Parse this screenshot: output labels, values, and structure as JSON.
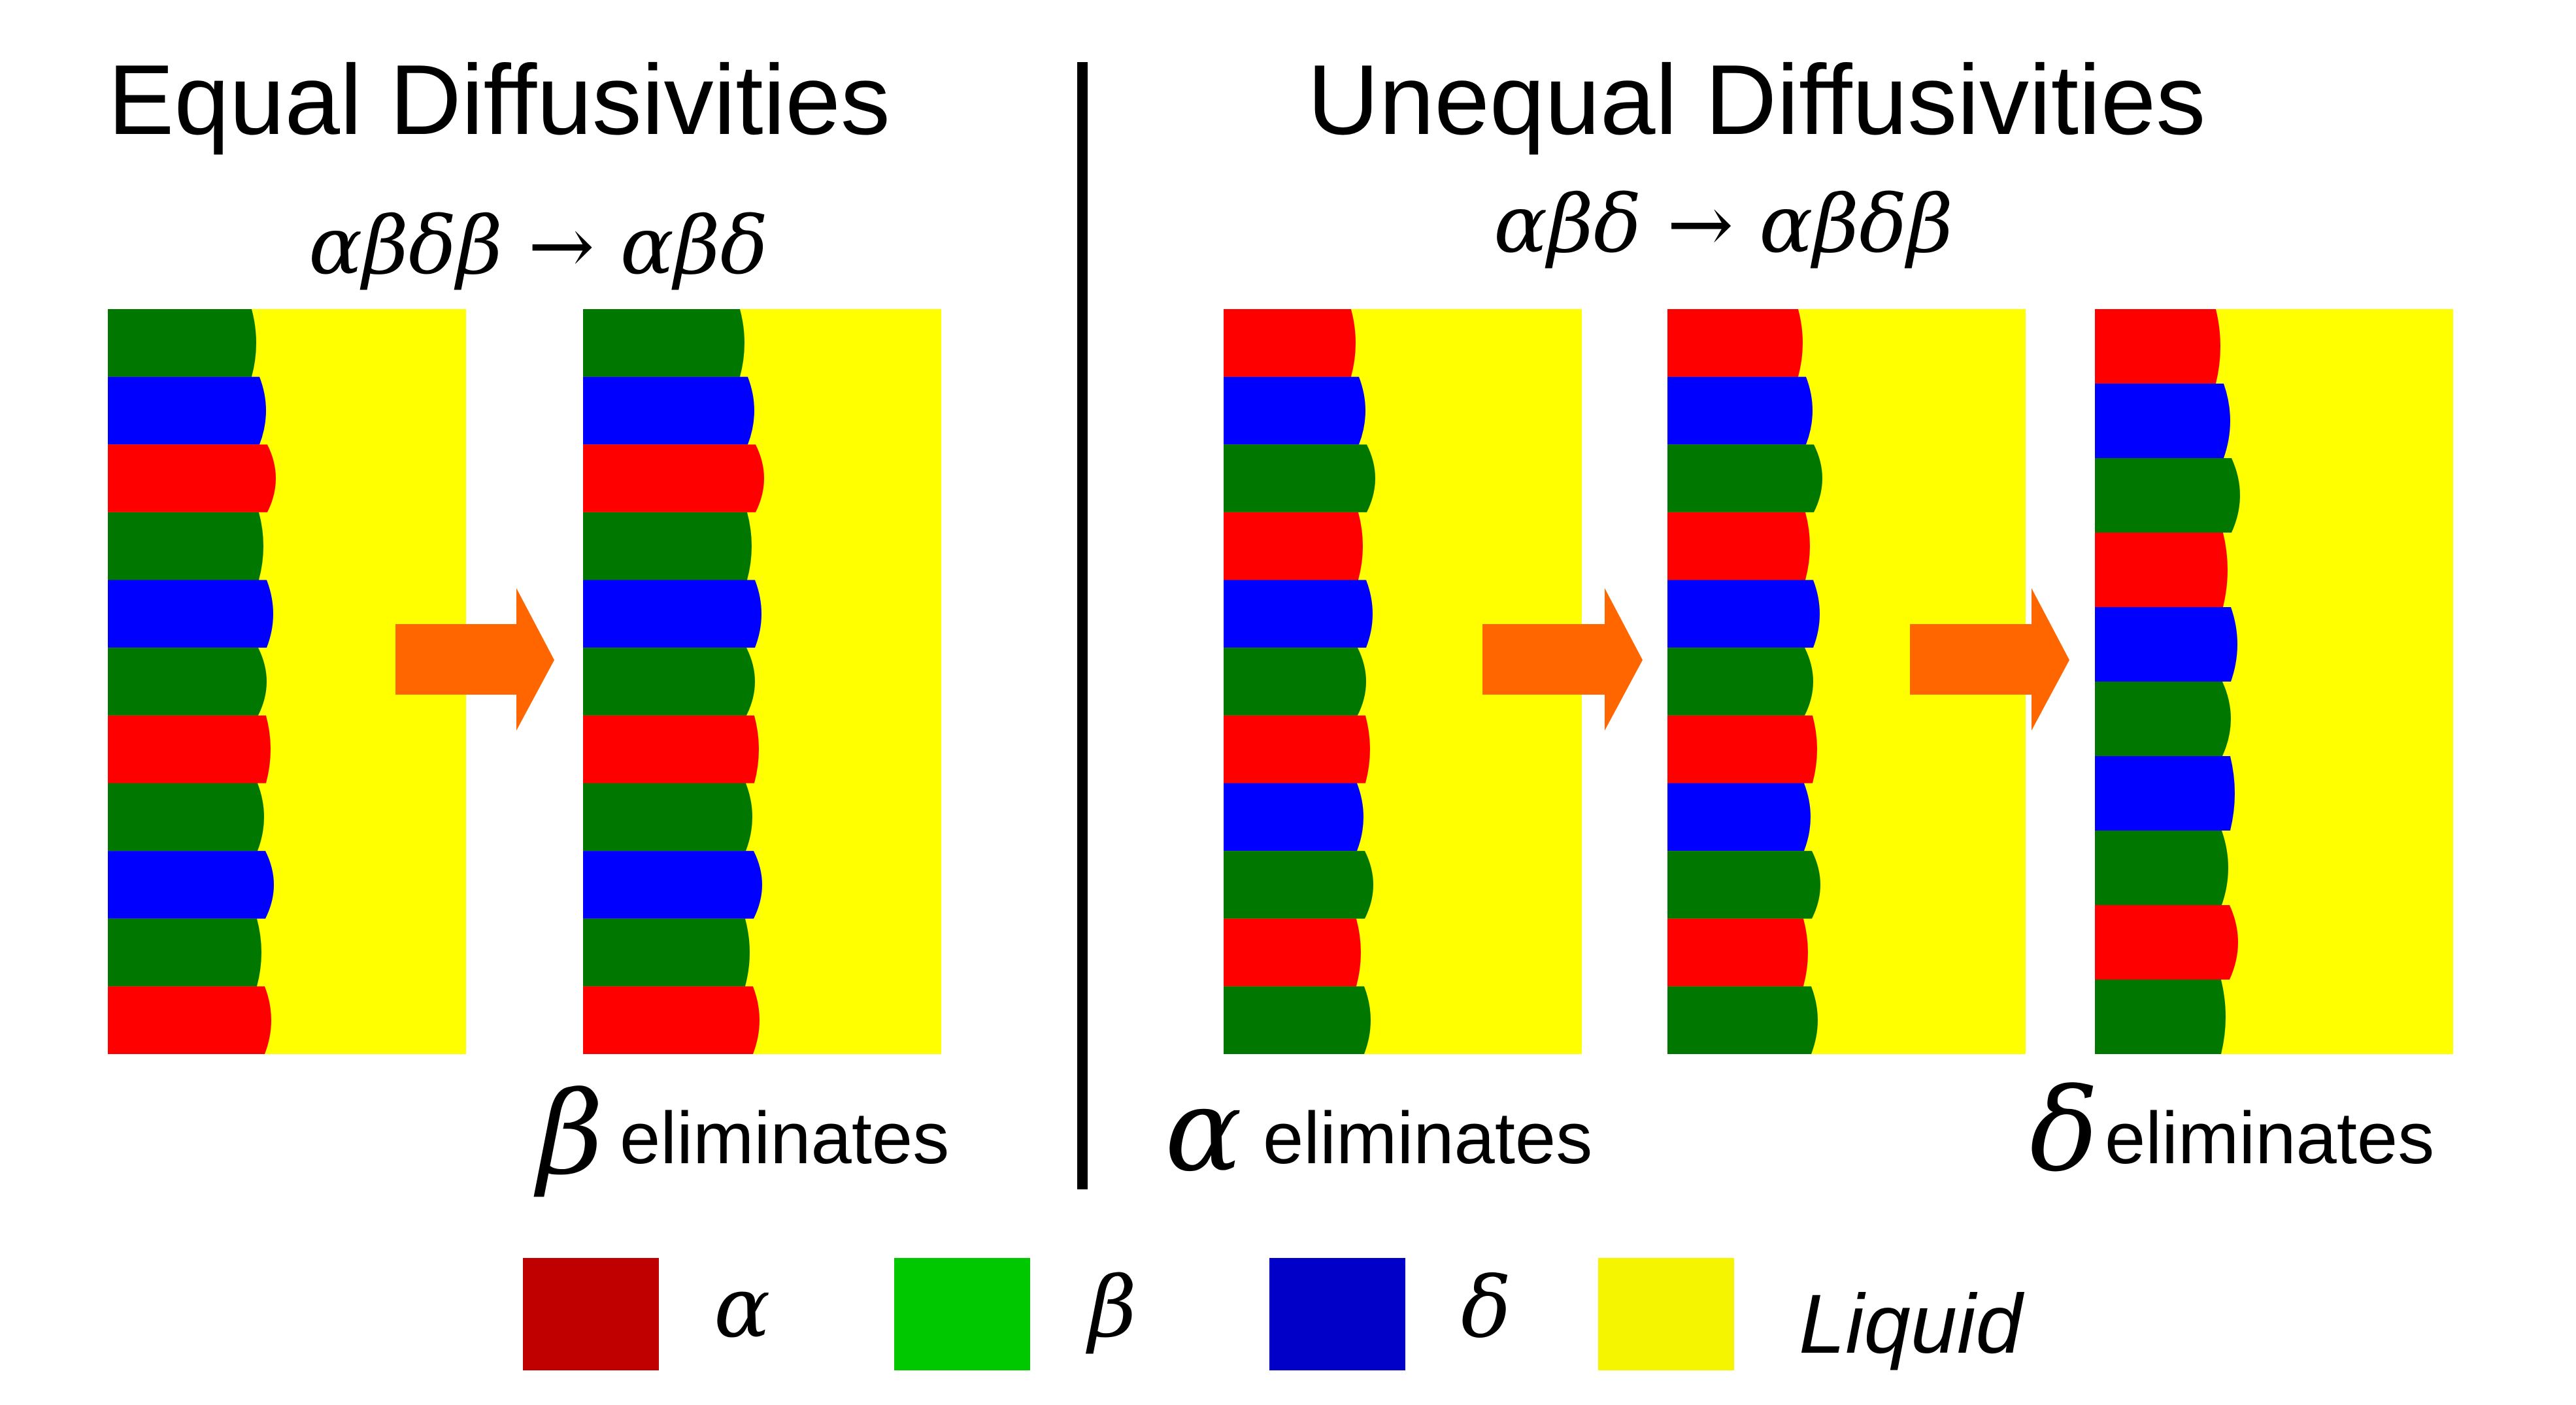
{
  "left_panel": {
    "title": "Equal Diffusivities",
    "transition": "αβδβ → αβδ",
    "result_symbol": "β",
    "result_text": "eliminates"
  },
  "right_panel": {
    "title": "Unequal Diffusivities",
    "transition": "αβδ → αβδβ",
    "result1_symbol": "α",
    "result1_text": "eliminates",
    "result2_symbol": "δ",
    "result2_text": "eliminates"
  },
  "legend": [
    {
      "symbol": "α",
      "color": "#c00000"
    },
    {
      "symbol": "β",
      "color": "#00c800"
    },
    {
      "symbol": "δ",
      "color": "#0000c8"
    },
    {
      "symbol": "Liquid",
      "color": "#f5f500"
    }
  ],
  "colors": {
    "alpha": "#ff0000",
    "beta": "#007800",
    "delta": "#0000ff",
    "liquid": "#ffff00",
    "arrow": "#ff6600",
    "divider": "#000000"
  },
  "simulations": [
    {
      "name": "equal-before",
      "phases": [
        "beta",
        "delta",
        "alpha",
        "beta",
        "delta",
        "beta",
        "alpha",
        "beta",
        "delta",
        "beta",
        "alpha"
      ]
    },
    {
      "name": "equal-after",
      "phases": [
        "beta",
        "delta",
        "alpha",
        "beta",
        "delta",
        "beta",
        "alpha",
        "beta",
        "delta",
        "beta",
        "alpha"
      ]
    },
    {
      "name": "unequal-stage-1",
      "phases": [
        "alpha",
        "delta",
        "beta",
        "alpha",
        "delta",
        "beta",
        "alpha",
        "delta",
        "beta",
        "alpha",
        "beta"
      ]
    },
    {
      "name": "unequal-stage-2",
      "phases": [
        "alpha",
        "delta",
        "beta",
        "alpha",
        "delta",
        "beta",
        "alpha",
        "delta",
        "beta",
        "alpha",
        "beta"
      ]
    },
    {
      "name": "unequal-stage-3",
      "phases": [
        "alpha",
        "delta",
        "beta",
        "alpha",
        "delta",
        "beta",
        "delta",
        "beta",
        "alpha",
        "beta"
      ]
    }
  ]
}
